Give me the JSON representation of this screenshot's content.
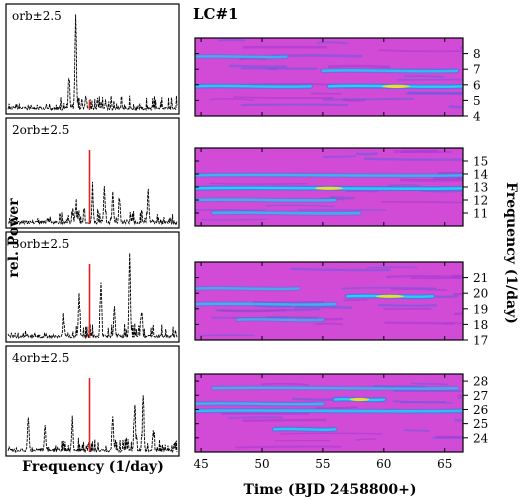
{
  "chart_data": {
    "type": "heatmap",
    "title": "LC#1",
    "left_xlabel": "Frequency (1/day)",
    "left_ylabel": "rel. Power",
    "right_xlabel": "Time (BJD 2458800+)",
    "right_ylabel": "Frequency (1/day)",
    "time_ticks": [
      45,
      50,
      55,
      60,
      65
    ],
    "time_range": [
      44.5,
      66.5
    ],
    "colors": {
      "periodogram_line": "#000000",
      "orbital_marker": "#e8231e",
      "heatmap_background": "#d24bd6",
      "heatmap_ridge": "#22d2ee",
      "heatmap_peak": "#f2e222"
    },
    "panels": [
      {
        "label": "orb±2.5",
        "freq_range": [
          4,
          9
        ],
        "freq_ticks": [
          4,
          5,
          6,
          7,
          8
        ],
        "marker_position": 0.5,
        "peaks": [
          {
            "pos": 0.4,
            "height": 0.93
          },
          {
            "pos": 0.36,
            "height": 0.3
          },
          {
            "pos": 0.46,
            "height": 0.12
          },
          {
            "pos": 0.58,
            "height": 0.06
          }
        ],
        "ridges": [
          {
            "freq": 5.9,
            "t_start": 44.5,
            "t_end": 54,
            "strength": 0.8
          },
          {
            "freq": 5.9,
            "t_start": 55.5,
            "t_end": 66.5,
            "strength": 1.0
          },
          {
            "freq": 6.9,
            "t_start": 55,
            "t_end": 66,
            "strength": 0.6
          },
          {
            "freq": 7.8,
            "t_start": 44.5,
            "t_end": 52,
            "strength": 0.35
          }
        ]
      },
      {
        "label": "2orb±2.5",
        "freq_range": [
          10,
          16
        ],
        "freq_ticks": [
          11,
          12,
          13,
          14,
          15
        ],
        "marker_position": 0.5,
        "peaks": [
          {
            "pos": 0.5,
            "height": 0.3
          },
          {
            "pos": 0.57,
            "height": 0.35
          },
          {
            "pos": 0.62,
            "height": 0.3
          },
          {
            "pos": 0.66,
            "height": 0.25
          },
          {
            "pos": 0.83,
            "height": 0.28
          },
          {
            "pos": 0.4,
            "height": 0.15
          }
        ],
        "ridges": [
          {
            "freq": 12.9,
            "t_start": 44.5,
            "t_end": 66.5,
            "strength": 1.0
          },
          {
            "freq": 13.9,
            "t_start": 44.5,
            "t_end": 66.5,
            "strength": 0.45
          },
          {
            "freq": 12.0,
            "t_start": 44.5,
            "t_end": 56,
            "strength": 0.35
          },
          {
            "freq": 11.0,
            "t_start": 46,
            "t_end": 58,
            "strength": 0.4
          }
        ]
      },
      {
        "label": "3orb±2.5",
        "freq_range": [
          17,
          22
        ],
        "freq_ticks": [
          17,
          18,
          19,
          20,
          21
        ],
        "marker_position": 0.5,
        "peaks": [
          {
            "pos": 0.72,
            "height": 0.82
          },
          {
            "pos": 0.55,
            "height": 0.55
          },
          {
            "pos": 0.42,
            "height": 0.42
          },
          {
            "pos": 0.63,
            "height": 0.3
          },
          {
            "pos": 0.79,
            "height": 0.25
          },
          {
            "pos": 0.33,
            "height": 0.15
          }
        ],
        "ridges": [
          {
            "freq": 19.8,
            "t_start": 57,
            "t_end": 64,
            "strength": 1.0
          },
          {
            "freq": 19.3,
            "t_start": 44.5,
            "t_end": 56,
            "strength": 0.45
          },
          {
            "freq": 20.3,
            "t_start": 44.5,
            "t_end": 53,
            "strength": 0.3
          },
          {
            "freq": 18.3,
            "t_start": 48,
            "t_end": 55,
            "strength": 0.25
          }
        ]
      },
      {
        "label": "4orb±2.5",
        "freq_range": [
          23,
          28.5
        ],
        "freq_ticks": [
          24,
          25,
          26,
          27,
          28
        ],
        "marker_position": 0.5,
        "peaks": [
          {
            "pos": 0.8,
            "height": 0.55
          },
          {
            "pos": 0.75,
            "height": 0.45
          },
          {
            "pos": 0.62,
            "height": 0.35
          },
          {
            "pos": 0.12,
            "height": 0.33
          },
          {
            "pos": 0.38,
            "height": 0.3
          },
          {
            "pos": 0.22,
            "height": 0.25
          },
          {
            "pos": 0.86,
            "height": 0.2
          }
        ],
        "ridges": [
          {
            "freq": 26.7,
            "t_start": 56,
            "t_end": 60,
            "strength": 1.0
          },
          {
            "freq": 25.9,
            "t_start": 44.5,
            "t_end": 66.5,
            "strength": 0.65
          },
          {
            "freq": 24.6,
            "t_start": 51,
            "t_end": 56,
            "strength": 0.8
          },
          {
            "freq": 26.4,
            "t_start": 44.5,
            "t_end": 55,
            "strength": 0.5
          },
          {
            "freq": 27.5,
            "t_start": 46,
            "t_end": 66,
            "strength": 0.3
          }
        ]
      }
    ]
  }
}
